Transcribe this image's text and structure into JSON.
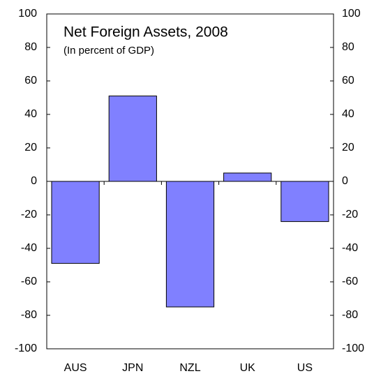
{
  "chart_data": {
    "type": "bar",
    "title": "Net Foreign Assets, 2008",
    "subtitle": "(In percent of GDP)",
    "categories": [
      "AUS",
      "JPN",
      "NZL",
      "UK",
      "US"
    ],
    "values": [
      -49,
      51,
      -75,
      5,
      -24
    ],
    "color": "#8080ff",
    "ylim": [
      -100,
      100
    ],
    "yticks": [
      -100,
      -80,
      -60,
      -40,
      -20,
      0,
      20,
      40,
      60,
      80,
      100
    ],
    "y2lim": [
      -100,
      100
    ],
    "y2ticks": [
      -100,
      -80,
      -60,
      -40,
      -20,
      0,
      20,
      40,
      60,
      80,
      100
    ],
    "grid": false
  }
}
